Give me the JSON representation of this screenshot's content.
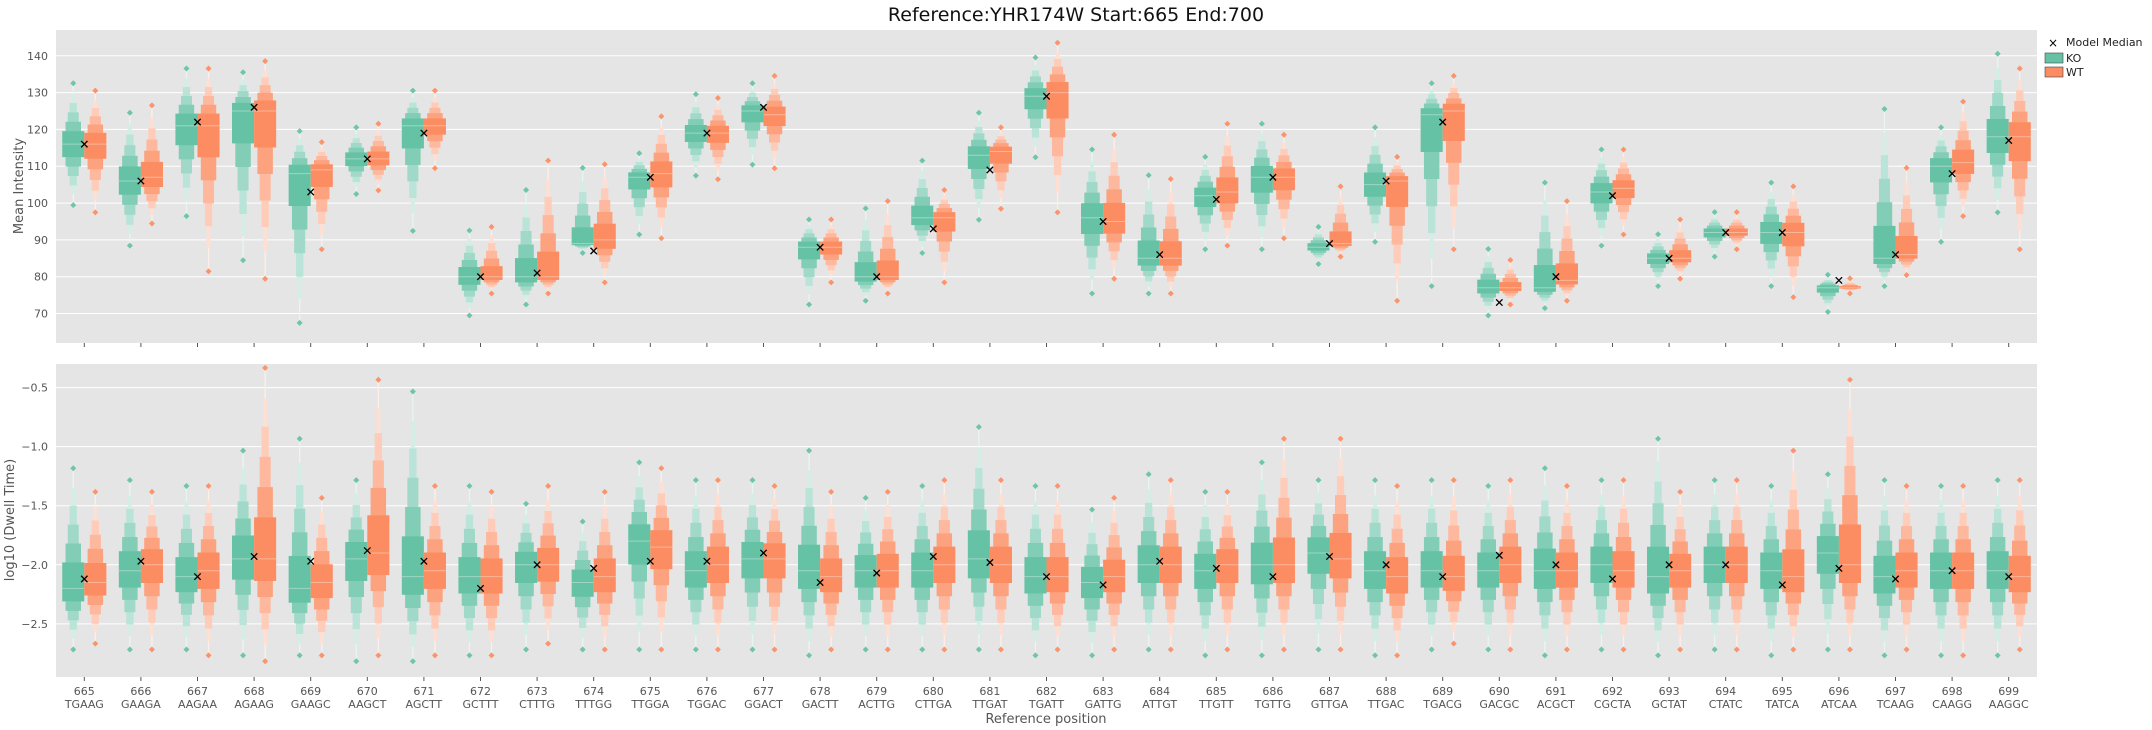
{
  "figure": {
    "title": "Reference:YHR174W  Start:665  End:700"
  },
  "colors": {
    "KO": "#66c2a5",
    "WT": "#fc8d62",
    "panel_bg": "#e5e5e5",
    "grid": "#ffffff",
    "median_marker": "#000000"
  },
  "legend": {
    "items": [
      "Model Median",
      "KO",
      "WT"
    ],
    "placement": "outside-right-top"
  },
  "chart_data": [
    {
      "type": "boxenplot",
      "panel": "top",
      "xlabel": "",
      "ylabel": "Mean Intensity",
      "ylim": [
        62,
        147
      ],
      "yticks": [
        70,
        80,
        90,
        100,
        110,
        120,
        130,
        140
      ],
      "grid": true,
      "positions": [
        665,
        666,
        667,
        668,
        669,
        670,
        671,
        672,
        673,
        674,
        675,
        676,
        677,
        678,
        679,
        680,
        681,
        682,
        683,
        684,
        685,
        686,
        687,
        688,
        689,
        690,
        691,
        692,
        693,
        694,
        695,
        696,
        697,
        698,
        699
      ],
      "kmers": [
        "TGAAG",
        "GAAGA",
        "AAGAA",
        "AGAAG",
        "GAAGC",
        "AAGCT",
        "AGCTT",
        "GCTTT",
        "CTTTG",
        "TTTGG",
        "TTGGA",
        "TGGAC",
        "GGACT",
        "GACTT",
        "ACTTG",
        "CTTGA",
        "TTGAT",
        "TGATT",
        "GATTG",
        "ATTGT",
        "TTGTT",
        "TGTTG",
        "GTTGA",
        "TTGAC",
        "TGACG",
        "GACGC",
        "ACGCT",
        "CGCTA",
        "GCTAT",
        "CTATC",
        "TATCA",
        "ATCAA",
        "TCAAG",
        "CAAGG",
        "AAGGC"
      ],
      "series": [
        {
          "name": "KO",
          "median": [
            116,
            106,
            121,
            125,
            108,
            112,
            121,
            80,
            80,
            89,
            107,
            119,
            125,
            88,
            80,
            96,
            113,
            129,
            96,
            85,
            102,
            107,
            88,
            105,
            124,
            77,
            77,
            103,
            85,
            92,
            92,
            77,
            85,
            110,
            118
          ],
          "min": [
            100,
            89,
            97,
            85,
            68,
            103,
            93,
            70,
            73,
            87,
            92,
            108,
            111,
            73,
            74,
            87,
            96,
            113,
            76,
            76,
            88,
            88,
            84,
            90,
            78,
            70,
            72,
            89,
            78,
            86,
            78,
            71,
            78,
            90,
            98
          ],
          "max": [
            132,
            124,
            136,
            135,
            119,
            120,
            130,
            92,
            103,
            109,
            113,
            129,
            132,
            95,
            98,
            111,
            124,
            139,
            114,
            107,
            112,
            121,
            93,
            120,
            132,
            87,
            105,
            114,
            91,
            97,
            105,
            80,
            125,
            120,
            140
          ]
        },
        {
          "name": "WT",
          "median": [
            116,
            107,
            121,
            125,
            109,
            112,
            121,
            80,
            80,
            90,
            108,
            119,
            124,
            88,
            80,
            96,
            114,
            130,
            95,
            85,
            103,
            107,
            89,
            106,
            125,
            77,
            79,
            104,
            85,
            92,
            92,
            77,
            86,
            111,
            118
          ],
          "min": [
            98,
            95,
            82,
            80,
            88,
            104,
            110,
            76,
            76,
            79,
            91,
            107,
            110,
            79,
            76,
            79,
            99,
            98,
            80,
            76,
            89,
            91,
            86,
            74,
            88,
            73,
            74,
            92,
            80,
            88,
            75,
            76,
            81,
            97,
            88
          ],
          "max": [
            130,
            126,
            136,
            138,
            116,
            121,
            130,
            93,
            111,
            110,
            123,
            128,
            134,
            95,
            100,
            103,
            120,
            143,
            118,
            106,
            121,
            118,
            104,
            112,
            134,
            84,
            100,
            114,
            95,
            97,
            104,
            79,
            109,
            127,
            136
          ]
        }
      ],
      "model_median": [
        116,
        106,
        122,
        126,
        103,
        112,
        119,
        80,
        81,
        87,
        107,
        119,
        126,
        88,
        80,
        93,
        109,
        129,
        95,
        86,
        101,
        107,
        89,
        106,
        122,
        73,
        80,
        102,
        85,
        92,
        92,
        79,
        86,
        108,
        117
      ]
    },
    {
      "type": "boxenplot",
      "panel": "bottom",
      "xlabel": "Reference position",
      "ylabel": "log10 (Dwell Time)",
      "ylim": [
        -2.95,
        -0.3
      ],
      "yticks": [
        -2.5,
        -2.0,
        -1.5,
        -1.0,
        -0.5
      ],
      "grid": true,
      "series": [
        {
          "name": "KO",
          "median": [
            -2.2,
            -2.05,
            -2.1,
            -1.95,
            -2.2,
            -1.95,
            -2.1,
            -2.1,
            -2.0,
            -2.15,
            -1.8,
            -2.05,
            -1.95,
            -2.05,
            -2.05,
            -2.05,
            -1.95,
            -2.1,
            -2.15,
            -2.0,
            -2.05,
            -2.0,
            -1.9,
            -2.05,
            -2.05,
            -2.05,
            -2.05,
            -2.0,
            -2.1,
            -2.0,
            -2.05,
            -1.9,
            -2.1,
            -2.05,
            -2.05
          ],
          "min": [
            -2.7,
            -2.7,
            -2.7,
            -2.75,
            -2.75,
            -2.8,
            -2.8,
            -2.75,
            -2.7,
            -2.7,
            -2.7,
            -2.7,
            -2.7,
            -2.75,
            -2.7,
            -2.7,
            -2.7,
            -2.75,
            -2.75,
            -2.7,
            -2.75,
            -2.75,
            -2.7,
            -2.75,
            -2.7,
            -2.7,
            -2.75,
            -2.7,
            -2.75,
            -2.7,
            -2.75,
            -2.7,
            -2.75,
            -2.75,
            -2.75
          ],
          "max": [
            -1.2,
            -1.3,
            -1.35,
            -1.05,
            -0.95,
            -1.3,
            -0.55,
            -1.35,
            -1.5,
            -1.65,
            -1.15,
            -1.3,
            -1.3,
            -1.05,
            -1.45,
            -1.35,
            -0.85,
            -1.35,
            -1.55,
            -1.25,
            -1.4,
            -1.15,
            -1.3,
            -1.3,
            -1.3,
            -1.35,
            -1.2,
            -1.3,
            -0.95,
            -1.3,
            -1.35,
            -1.25,
            -1.3,
            -1.35,
            -1.3
          ]
        },
        {
          "name": "WT",
          "median": [
            -2.15,
            -2.0,
            -2.05,
            -1.95,
            -2.15,
            -1.9,
            -2.05,
            -2.1,
            -2.0,
            -2.1,
            -1.85,
            -2.0,
            -1.95,
            -2.1,
            -2.05,
            -2.0,
            -2.0,
            -2.1,
            -2.1,
            -2.0,
            -2.0,
            -2.0,
            -1.95,
            -2.1,
            -2.1,
            -2.0,
            -2.05,
            -2.05,
            -2.05,
            -2.0,
            -2.1,
            -2.0,
            -2.05,
            -2.05,
            -2.1
          ],
          "min": [
            -2.65,
            -2.7,
            -2.75,
            -2.8,
            -2.75,
            -2.75,
            -2.75,
            -2.75,
            -2.65,
            -2.7,
            -2.7,
            -2.7,
            -2.7,
            -2.7,
            -2.7,
            -2.7,
            -2.7,
            -2.7,
            -2.7,
            -2.7,
            -2.7,
            -2.7,
            -2.7,
            -2.75,
            -2.65,
            -2.7,
            -2.7,
            -2.7,
            -2.7,
            -2.7,
            -2.7,
            -2.7,
            -2.7,
            -2.75,
            -2.7
          ],
          "max": [
            -1.4,
            -1.4,
            -1.35,
            -0.35,
            -1.45,
            -0.45,
            -1.35,
            -1.4,
            -1.35,
            -1.4,
            -1.2,
            -1.3,
            -1.35,
            -1.4,
            -1.4,
            -1.3,
            -1.3,
            -1.35,
            -1.45,
            -1.3,
            -1.4,
            -0.95,
            -0.95,
            -1.35,
            -1.3,
            -1.3,
            -1.35,
            -1.3,
            -1.4,
            -1.3,
            -1.05,
            -0.45,
            -1.35,
            -1.35,
            -1.3
          ]
        }
      ],
      "model_median": [
        -2.12,
        -1.97,
        -2.1,
        -1.93,
        -1.97,
        -1.88,
        -1.97,
        -2.2,
        -2.0,
        -2.03,
        -1.97,
        -1.97,
        -1.9,
        -2.15,
        -2.07,
        -1.93,
        -1.98,
        -2.1,
        -2.17,
        -1.97,
        -2.03,
        -2.1,
        -1.93,
        -2.0,
        -2.1,
        -1.92,
        -2.0,
        -2.12,
        -2.0,
        -2.0,
        -2.17,
        -2.03,
        -2.12,
        -2.05,
        -2.1
      ]
    }
  ]
}
